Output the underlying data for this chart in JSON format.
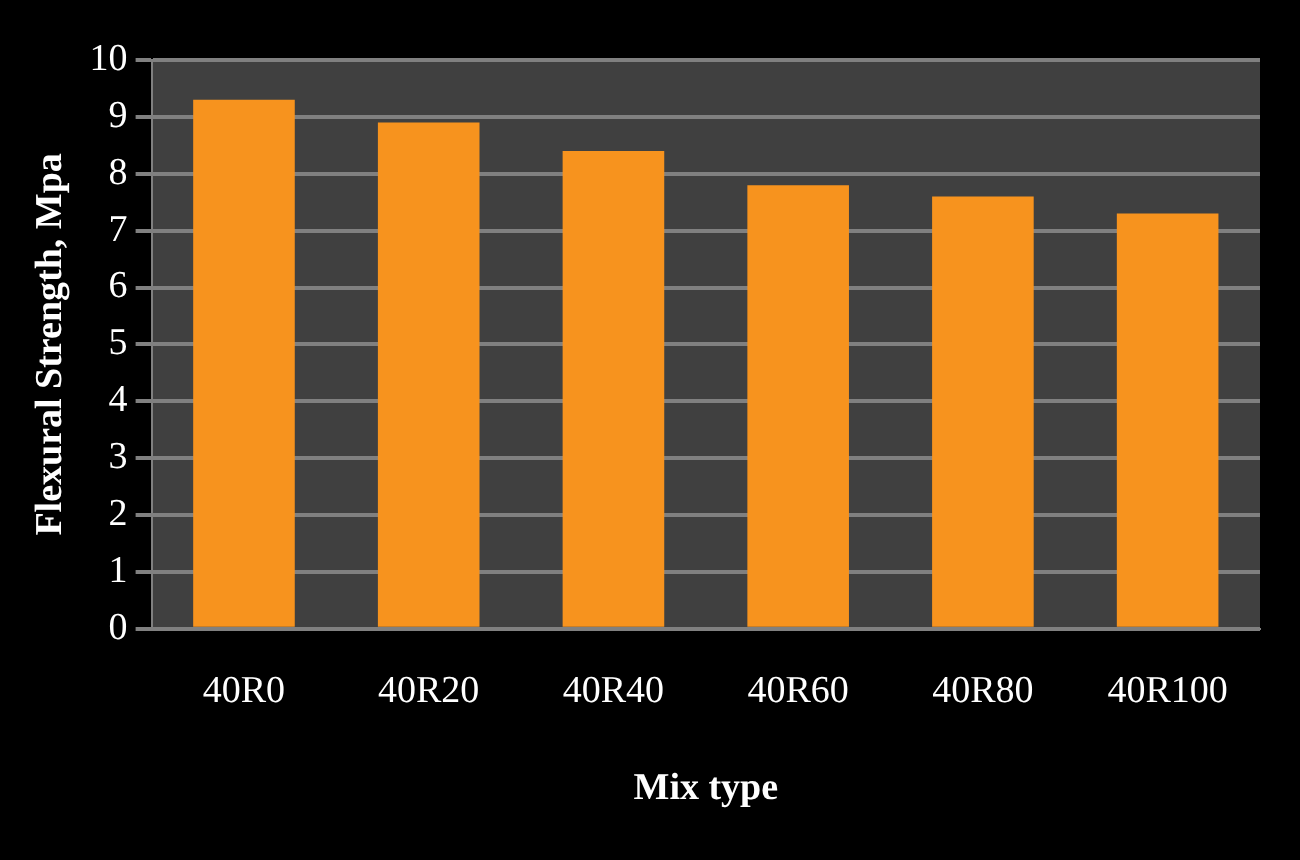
{
  "chart_data": {
    "type": "bar",
    "xlabel": "Mix type",
    "ylabel": "Flexural Strength, Mpa",
    "categories": [
      "40R0",
      "40R20",
      "40R40",
      "40R60",
      "40R80",
      "40R100"
    ],
    "values": [
      9.3,
      8.9,
      8.4,
      7.8,
      7.6,
      7.3
    ],
    "color": "#f7931e",
    "ylim": [
      0,
      10
    ],
    "yticks": [
      0,
      1,
      2,
      3,
      4,
      5,
      6,
      7,
      8,
      9,
      10
    ],
    "grid": "y"
  }
}
